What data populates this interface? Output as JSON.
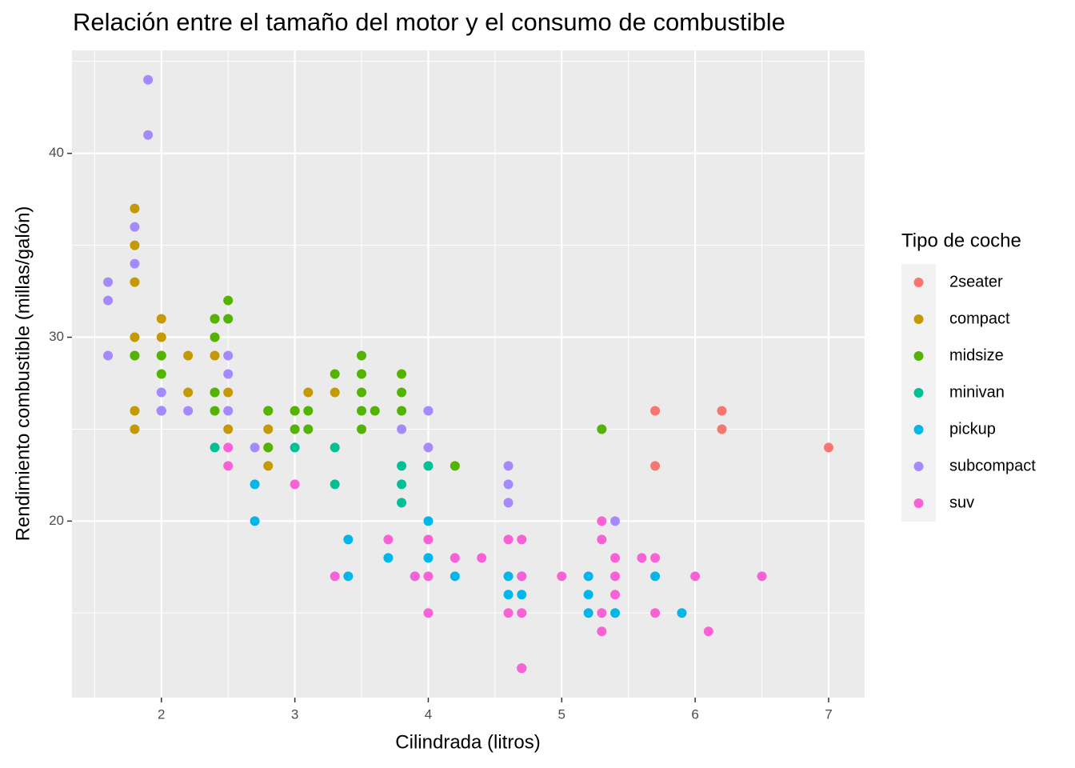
{
  "chart_data": {
    "type": "scatter",
    "title": "Relación entre el tamaño del motor y el consumo de combustible",
    "x_label": "Cilindrada (litros)",
    "y_label": "Rendimiento combustible (millas/galón)",
    "legend_title": "Tipo de coche",
    "xlim": [
      1.33,
      7.27
    ],
    "ylim": [
      10.4,
      45.6
    ],
    "xticks": [
      2,
      3,
      4,
      5,
      6,
      7
    ],
    "yticks": [
      20,
      30,
      40
    ],
    "grid": true,
    "legend": "right",
    "series": [
      {
        "name": "2seater",
        "color": "#F8766D",
        "x": [
          5.7,
          5.7,
          6.2,
          6.2,
          7
        ],
        "values": [
          26,
          23,
          26,
          25,
          24
        ]
      },
      {
        "name": "compact",
        "color": "#C49A00",
        "x": [
          1.8,
          1.8,
          1.8,
          1.8,
          1.8,
          1.8,
          1.8,
          2,
          2,
          2,
          2,
          2.2,
          2.2,
          2.4,
          2.4,
          2.4,
          2.5,
          2.5,
          2.8,
          2.8,
          2.8,
          2.8,
          3,
          3.1,
          3.3
        ],
        "values": [
          37,
          35,
          33,
          30,
          29,
          26,
          25,
          31,
          30,
          29,
          26,
          29,
          27,
          31,
          29,
          27,
          27,
          25,
          26,
          25,
          24,
          23,
          26,
          27,
          27
        ]
      },
      {
        "name": "midsize",
        "color": "#53B400",
        "x": [
          1.8,
          2,
          2,
          2,
          2.4,
          2.4,
          2.4,
          2.4,
          2.5,
          2.5,
          2.8,
          2.8,
          3,
          3,
          3.1,
          3.1,
          3.3,
          3.5,
          3.5,
          3.5,
          3.5,
          3.5,
          3.6,
          3.8,
          3.8,
          3.8,
          4.2,
          5.3
        ],
        "values": [
          29,
          29,
          28,
          26,
          31,
          30,
          27,
          26,
          32,
          31,
          26,
          24,
          26,
          25,
          26,
          25,
          28,
          29,
          28,
          27,
          26,
          25,
          26,
          28,
          27,
          26,
          23,
          25
        ]
      },
      {
        "name": "minivan",
        "color": "#00C094",
        "x": [
          2.4,
          3,
          3.3,
          3.3,
          3.8,
          3.8,
          3.8,
          4
        ],
        "values": [
          24,
          24,
          24,
          22,
          23,
          22,
          21,
          23
        ]
      },
      {
        "name": "pickup",
        "color": "#00B6EB",
        "x": [
          2.7,
          2.7,
          3.4,
          3.4,
          3.7,
          3.9,
          4,
          4,
          4.2,
          4.6,
          4.6,
          4.7,
          4.7,
          4.7,
          5.2,
          5.2,
          5.2,
          5.4,
          5.7,
          5.9
        ],
        "values": [
          22,
          20,
          19,
          17,
          18,
          17,
          20,
          18,
          17,
          17,
          16,
          17,
          16,
          12,
          17,
          16,
          15,
          15,
          17,
          15
        ]
      },
      {
        "name": "subcompact",
        "color": "#A58AFF",
        "x": [
          1.6,
          1.6,
          1.6,
          1.8,
          1.8,
          1.9,
          1.9,
          2,
          2,
          2.2,
          2.5,
          2.5,
          2.5,
          2.7,
          3.8,
          4,
          4,
          4.6,
          4.6,
          4.6,
          5.4
        ],
        "values": [
          33,
          32,
          29,
          36,
          34,
          44,
          41,
          27,
          26,
          26,
          29,
          28,
          26,
          24,
          25,
          26,
          24,
          23,
          22,
          21,
          20
        ]
      },
      {
        "name": "suv",
        "color": "#FB61D7",
        "x": [
          2.5,
          2.5,
          3,
          3.3,
          3.7,
          3.9,
          4,
          4,
          4,
          4.2,
          4.4,
          4.6,
          4.6,
          4.7,
          4.7,
          4.7,
          4.7,
          5,
          5.3,
          5.3,
          5.3,
          5.3,
          5.4,
          5.4,
          5.4,
          5.6,
          5.7,
          5.7,
          6,
          6.1,
          6.5
        ],
        "values": [
          24,
          23,
          22,
          17,
          19,
          17,
          19,
          17,
          15,
          18,
          18,
          19,
          15,
          19,
          17,
          15,
          12,
          17,
          20,
          19,
          15,
          14,
          18,
          17,
          16,
          18,
          18,
          15,
          17,
          14,
          17
        ]
      }
    ]
  }
}
